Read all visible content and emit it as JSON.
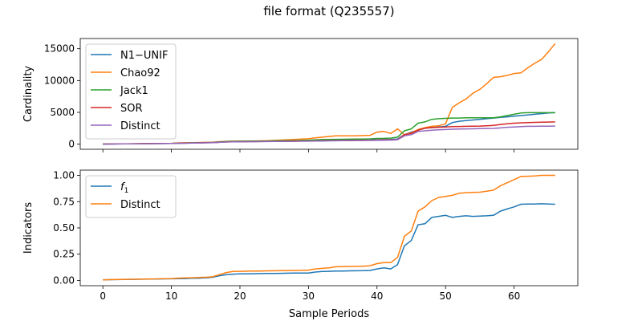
{
  "figure": {
    "title": "file format (Q235557)",
    "xlabel": "Sample Periods"
  },
  "chart_data": [
    {
      "type": "line",
      "title": "",
      "xlabel": "",
      "ylabel": "Cardinality",
      "xlim": [
        -3.3,
        69.3
      ],
      "ylim": [
        -800,
        16600
      ],
      "xticks": [
        0,
        10,
        20,
        30,
        40,
        50,
        60
      ],
      "xtick_labels": [
        "",
        "",
        "",
        "",
        "",
        "",
        ""
      ],
      "yticks": [
        0,
        5000,
        10000,
        15000
      ],
      "ytick_labels": [
        "0",
        "5000",
        "10000",
        "15000"
      ],
      "legend": "upper-left",
      "grid": false,
      "x": [
        0,
        1,
        2,
        3,
        4,
        5,
        6,
        7,
        8,
        9,
        10,
        11,
        12,
        13,
        14,
        15,
        16,
        17,
        18,
        19,
        20,
        21,
        22,
        23,
        24,
        25,
        26,
        27,
        28,
        29,
        30,
        31,
        32,
        33,
        34,
        35,
        36,
        37,
        38,
        39,
        40,
        41,
        42,
        43,
        44,
        45,
        46,
        47,
        48,
        49,
        50,
        51,
        52,
        53,
        54,
        55,
        56,
        57,
        58,
        59,
        60,
        61,
        62,
        63,
        64,
        65,
        66
      ],
      "series": [
        {
          "name": "N1−UNIF",
          "color": "#1f77b4",
          "values": [
            10,
            20,
            30,
            40,
            50,
            60,
            70,
            80,
            90,
            100,
            110,
            140,
            160,
            180,
            200,
            220,
            240,
            300,
            380,
            420,
            440,
            450,
            460,
            470,
            480,
            490,
            500,
            510,
            520,
            530,
            540,
            560,
            580,
            600,
            610,
            620,
            630,
            640,
            650,
            660,
            700,
            720,
            750,
            800,
            1500,
            1900,
            2200,
            2500,
            2600,
            2700,
            2800,
            3400,
            3600,
            3700,
            3800,
            3900,
            4000,
            4100,
            4200,
            4300,
            4400,
            4500,
            4600,
            4700,
            4800,
            4900,
            4950
          ]
        },
        {
          "name": "Chao92",
          "color": "#ff7f0e",
          "values": [
            30,
            40,
            50,
            60,
            70,
            80,
            90,
            100,
            110,
            120,
            130,
            200,
            220,
            240,
            260,
            280,
            300,
            400,
            450,
            470,
            480,
            490,
            500,
            520,
            550,
            600,
            650,
            700,
            750,
            800,
            850,
            1000,
            1100,
            1200,
            1300,
            1300,
            1300,
            1300,
            1350,
            1400,
            1900,
            2000,
            1700,
            2400,
            1500,
            1800,
            2300,
            2600,
            2800,
            2900,
            3200,
            5800,
            6500,
            7100,
            8000,
            8600,
            9500,
            10500,
            10600,
            10800,
            11100,
            11200,
            12000,
            12700,
            13300,
            14500,
            15800
          ]
        },
        {
          "name": "Jack1",
          "color": "#2ca02c",
          "values": [
            20,
            30,
            40,
            50,
            60,
            70,
            80,
            90,
            100,
            110,
            120,
            180,
            200,
            220,
            240,
            260,
            280,
            350,
            420,
            450,
            460,
            470,
            480,
            490,
            500,
            520,
            540,
            560,
            580,
            600,
            620,
            680,
            720,
            740,
            760,
            780,
            790,
            800,
            820,
            840,
            900,
            920,
            950,
            1100,
            2100,
            2400,
            3300,
            3500,
            3900,
            4000,
            4050,
            4100,
            4100,
            4150,
            4150,
            4150,
            4150,
            4150,
            4300,
            4500,
            4700,
            4900,
            4950,
            4950,
            4950,
            4950,
            4950
          ]
        },
        {
          "name": "SOR",
          "color": "#d62728",
          "values": [
            20,
            30,
            40,
            50,
            60,
            70,
            80,
            90,
            100,
            110,
            120,
            160,
            180,
            200,
            220,
            240,
            260,
            300,
            350,
            380,
            390,
            400,
            410,
            420,
            430,
            440,
            450,
            460,
            470,
            480,
            490,
            520,
            540,
            560,
            580,
            590,
            600,
            610,
            620,
            630,
            650,
            670,
            690,
            720,
            1500,
            1700,
            2200,
            2500,
            2600,
            2650,
            2700,
            2750,
            2780,
            2800,
            2820,
            2850,
            2900,
            2950,
            3100,
            3200,
            3300,
            3350,
            3400,
            3420,
            3450,
            3470,
            3500
          ]
        },
        {
          "name": "Distinct",
          "color": "#9467bd",
          "values": [
            10,
            20,
            30,
            40,
            50,
            60,
            70,
            80,
            90,
            100,
            110,
            130,
            150,
            170,
            190,
            210,
            230,
            280,
            330,
            360,
            370,
            380,
            390,
            400,
            410,
            420,
            430,
            440,
            450,
            460,
            470,
            490,
            500,
            520,
            540,
            550,
            560,
            570,
            580,
            590,
            600,
            620,
            640,
            700,
            1300,
            1500,
            2000,
            2100,
            2200,
            2250,
            2300,
            2350,
            2380,
            2400,
            2420,
            2440,
            2460,
            2480,
            2550,
            2650,
            2700,
            2750,
            2800,
            2800,
            2820,
            2830,
            2840
          ]
        }
      ]
    },
    {
      "type": "line",
      "title": "",
      "xlabel": "Sample Periods",
      "ylabel": "Indicators",
      "xlim": [
        -3.3,
        69.3
      ],
      "ylim": [
        -0.05,
        1.05
      ],
      "xticks": [
        0,
        10,
        20,
        30,
        40,
        50,
        60
      ],
      "xtick_labels": [
        "0",
        "10",
        "20",
        "30",
        "40",
        "50",
        "60"
      ],
      "yticks": [
        0,
        0.25,
        0.5,
        0.75,
        1.0
      ],
      "ytick_labels": [
        "0.00",
        "0.25",
        "0.50",
        "0.75",
        "1.00"
      ],
      "legend": "upper-left",
      "grid": false,
      "x": [
        0,
        1,
        2,
        3,
        4,
        5,
        6,
        7,
        8,
        9,
        10,
        11,
        12,
        13,
        14,
        15,
        16,
        17,
        18,
        19,
        20,
        21,
        22,
        23,
        24,
        25,
        26,
        27,
        28,
        29,
        30,
        31,
        32,
        33,
        34,
        35,
        36,
        37,
        38,
        39,
        40,
        41,
        42,
        43,
        44,
        45,
        46,
        47,
        48,
        49,
        50,
        51,
        52,
        53,
        54,
        55,
        56,
        57,
        58,
        59,
        60,
        61,
        62,
        63,
        64,
        65,
        66
      ],
      "series": [
        {
          "name": "f₁",
          "color": "#1f77b4",
          "values": [
            0.005,
            0.007,
            0.008,
            0.009,
            0.01,
            0.011,
            0.012,
            0.013,
            0.014,
            0.015,
            0.016,
            0.017,
            0.018,
            0.02,
            0.022,
            0.025,
            0.03,
            0.045,
            0.055,
            0.06,
            0.062,
            0.063,
            0.064,
            0.065,
            0.066,
            0.067,
            0.068,
            0.069,
            0.07,
            0.07,
            0.071,
            0.08,
            0.085,
            0.087,
            0.089,
            0.09,
            0.091,
            0.092,
            0.093,
            0.095,
            0.11,
            0.12,
            0.11,
            0.15,
            0.33,
            0.38,
            0.53,
            0.54,
            0.6,
            0.61,
            0.62,
            0.6,
            0.61,
            0.615,
            0.61,
            0.612,
            0.615,
            0.62,
            0.66,
            0.68,
            0.7,
            0.725,
            0.727,
            0.728,
            0.73,
            0.728,
            0.725
          ]
        },
        {
          "name": "Distinct",
          "color": "#ff7f0e",
          "values": [
            0.005,
            0.007,
            0.009,
            0.01,
            0.011,
            0.012,
            0.013,
            0.014,
            0.015,
            0.017,
            0.018,
            0.022,
            0.024,
            0.026,
            0.028,
            0.03,
            0.035,
            0.055,
            0.075,
            0.085,
            0.087,
            0.088,
            0.089,
            0.09,
            0.091,
            0.092,
            0.093,
            0.094,
            0.095,
            0.096,
            0.098,
            0.11,
            0.115,
            0.12,
            0.13,
            0.132,
            0.133,
            0.134,
            0.135,
            0.14,
            0.16,
            0.17,
            0.17,
            0.22,
            0.42,
            0.47,
            0.66,
            0.7,
            0.76,
            0.79,
            0.8,
            0.81,
            0.83,
            0.835,
            0.838,
            0.84,
            0.85,
            0.86,
            0.9,
            0.93,
            0.96,
            0.99,
            0.992,
            0.995,
            1.0,
            1.0,
            1.0
          ]
        }
      ]
    }
  ]
}
